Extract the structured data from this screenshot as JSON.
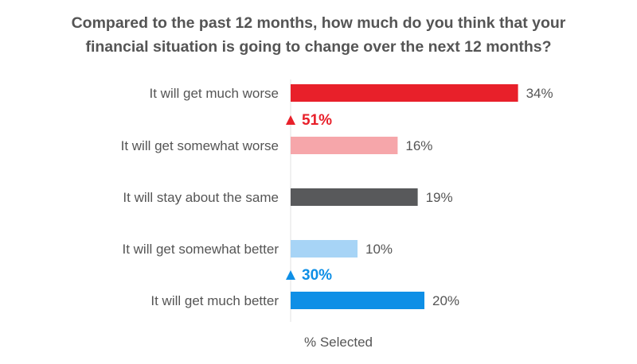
{
  "title": {
    "line1": "Compared to the past 12 months, how much do you think that your",
    "line2": "financial situation is going to change over the next 12 months?"
  },
  "chart_data": {
    "type": "bar",
    "orientation": "horizontal",
    "title": "Compared to the past 12 months, how much do you think that your financial situation is going to change over the next 12 months?",
    "xlabel": "% Selected",
    "ylabel": "",
    "xlim": [
      0,
      40
    ],
    "grid": false,
    "categories": [
      "It will get much worse",
      "It will get somewhat worse",
      "It will stay about the same",
      "It will get somewhat better",
      "It will get much better"
    ],
    "values": [
      34,
      16,
      19,
      10,
      20
    ],
    "value_labels": [
      "34%",
      "16%",
      "19%",
      "10%",
      "20%"
    ],
    "colors": [
      "#e8202a",
      "#f6a6aa",
      "#58595b",
      "#a7d4f6",
      "#0e8fe6"
    ],
    "annotations": [
      {
        "text": "51%",
        "icon": "triangle-up-icon",
        "color": "#e8202a",
        "between": [
          0,
          1
        ]
      },
      {
        "text": "30%",
        "icon": "triangle-up-icon",
        "color": "#0e8fe6",
        "between": [
          3,
          4
        ]
      }
    ]
  }
}
